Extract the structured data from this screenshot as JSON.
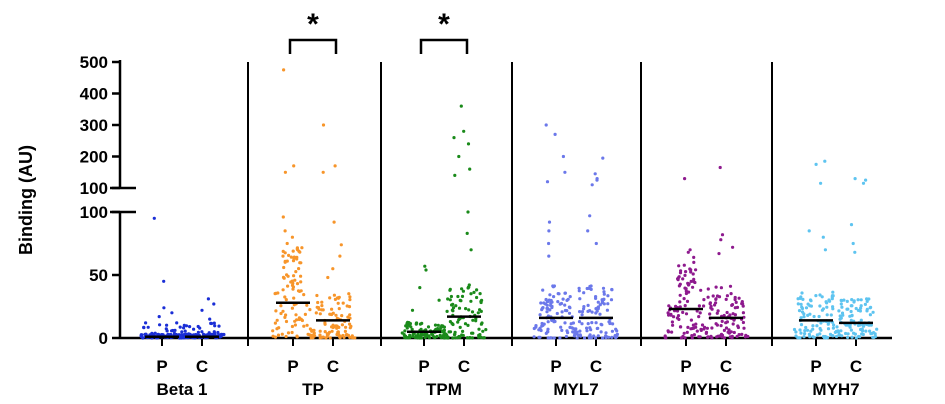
{
  "chart_data": {
    "type": "scatter",
    "subtype": "dot-plot with median lines, broken y-axis",
    "ylabel": "Binding (AU)",
    "y_axis": {
      "broken": true,
      "lower_segment": {
        "range": [
          0,
          100
        ],
        "ticks": [
          "0",
          "50",
          "100"
        ]
      },
      "upper_segment": {
        "range": [
          100,
          500
        ],
        "ticks": [
          "100",
          "200",
          "300",
          "400",
          "500"
        ]
      }
    },
    "conditions": [
      "P",
      "C"
    ],
    "significance_marker": "*",
    "groups": [
      {
        "label": "Beta 1",
        "color": "#1a2ed6",
        "significant": false,
        "P": {
          "median": 1,
          "notable": [
            95,
            45,
            24,
            20,
            17,
            12,
            8,
            6
          ]
        },
        "C": {
          "median": 1,
          "notable": [
            31,
            27,
            22,
            15,
            10,
            7,
            5
          ]
        }
      },
      {
        "label": "TP",
        "color": "#f7952a",
        "significant": true,
        "P": {
          "median": 28,
          "notable": [
            475,
            170,
            150,
            96,
            85,
            80,
            75,
            70,
            65
          ]
        },
        "C": {
          "median": 14,
          "notable": [
            300,
            170,
            150,
            92,
            74,
            65,
            55,
            48
          ]
        }
      },
      {
        "label": "TPM",
        "color": "#1a8a1a",
        "significant": true,
        "P": {
          "median": 5,
          "notable": [
            57,
            54,
            40,
            30,
            22
          ]
        },
        "C": {
          "median": 17,
          "notable": [
            360,
            280,
            260,
            240,
            200,
            160,
            140,
            100,
            83,
            70
          ]
        }
      },
      {
        "label": "MYL7",
        "color": "#6b78ea",
        "significant": false,
        "P": {
          "median": 16,
          "notable": [
            300,
            270,
            200,
            150,
            120,
            92,
            85,
            75,
            65
          ]
        },
        "C": {
          "median": 16,
          "notable": [
            195,
            145,
            130,
            125,
            110,
            97,
            85,
            75
          ]
        }
      },
      {
        "label": "MYH6",
        "color": "#8e1a8e",
        "significant": false,
        "P": {
          "median": 23,
          "notable": [
            130,
            70,
            68,
            64,
            60
          ]
        },
        "C": {
          "median": 16,
          "notable": [
            165,
            82,
            78,
            72,
            67
          ]
        }
      },
      {
        "label": "MYH7",
        "color": "#5ec4f0",
        "significant": false,
        "P": {
          "median": 14,
          "notable": [
            185,
            175,
            115,
            85,
            80,
            70
          ]
        },
        "C": {
          "median": 12,
          "notable": [
            130,
            125,
            115,
            90,
            75,
            68
          ]
        }
      }
    ]
  }
}
